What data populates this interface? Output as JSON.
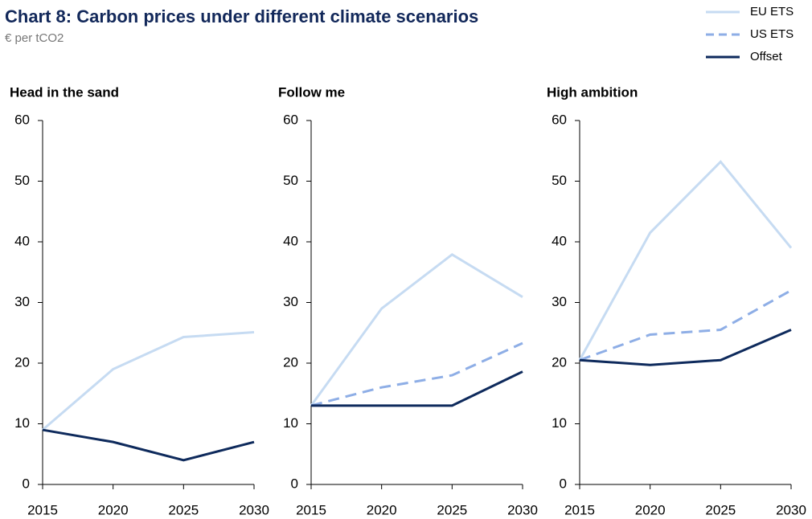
{
  "title": "Chart 8: Carbon prices under different climate scenarios",
  "subtitle": "€ per tCO2",
  "chart_data": [
    {
      "type": "line",
      "title": "Head in the sand",
      "x": [
        2015,
        2020,
        2025,
        2030
      ],
      "xlim": [
        2015,
        2030
      ],
      "xticks": [
        2015,
        2020,
        2025,
        2030
      ],
      "ylim": [
        0,
        60
      ],
      "yticks": [
        0,
        10,
        20,
        30,
        40,
        50,
        60
      ],
      "series": [
        {
          "name": "EU ETS",
          "color": "#c6dbf2",
          "values": [
            9,
            19,
            24.3,
            25.1
          ]
        },
        {
          "name": "Offset",
          "color": "#0e2a5c",
          "values": [
            9,
            7,
            4,
            7
          ]
        }
      ]
    },
    {
      "type": "line",
      "title": "Follow me",
      "x": [
        2015,
        2020,
        2025,
        2030
      ],
      "xlim": [
        2015,
        2030
      ],
      "xticks": [
        2015,
        2020,
        2025,
        2030
      ],
      "ylim": [
        0,
        60
      ],
      "yticks": [
        0,
        10,
        20,
        30,
        40,
        50,
        60
      ],
      "series": [
        {
          "name": "EU ETS",
          "color": "#c6dbf2",
          "values": [
            13,
            29,
            37.9,
            30.9
          ]
        },
        {
          "name": "US ETS",
          "color": "#8eaee6",
          "dashed": true,
          "values": [
            13,
            16,
            18,
            23.3
          ]
        },
        {
          "name": "Offset",
          "color": "#0e2a5c",
          "values": [
            13,
            13,
            13,
            18.6
          ]
        }
      ]
    },
    {
      "type": "line",
      "title": "High ambition",
      "x": [
        2015,
        2020,
        2025,
        2030
      ],
      "xlim": [
        2015,
        2030
      ],
      "xticks": [
        2015,
        2020,
        2025,
        2030
      ],
      "ylim": [
        0,
        60
      ],
      "yticks": [
        0,
        10,
        20,
        30,
        40,
        50,
        60
      ],
      "series": [
        {
          "name": "EU ETS",
          "color": "#c6dbf2",
          "values": [
            20.5,
            41.5,
            53.2,
            39
          ]
        },
        {
          "name": "US ETS",
          "color": "#8eaee6",
          "dashed": true,
          "values": [
            20.5,
            24.7,
            25.5,
            32
          ]
        },
        {
          "name": "Offset",
          "color": "#0e2a5c",
          "values": [
            20.5,
            19.7,
            20.5,
            25.5
          ]
        }
      ]
    }
  ]
}
